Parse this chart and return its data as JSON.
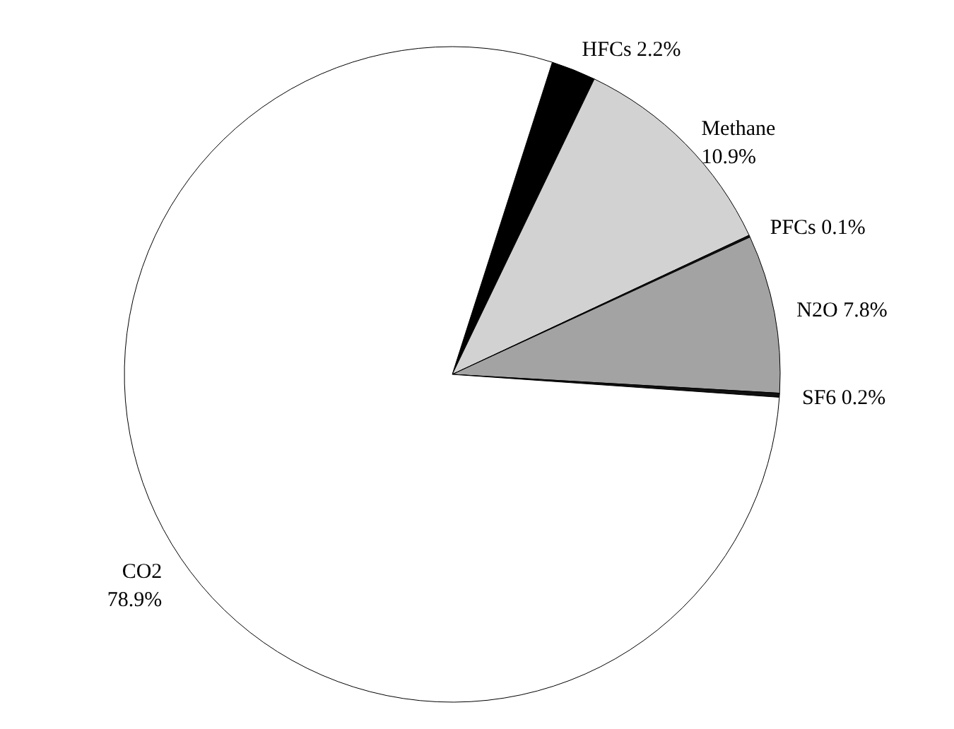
{
  "chart_data": {
    "type": "pie",
    "categories": [
      "HFCs",
      "Methane",
      "PFCs",
      "N2O",
      "SF6",
      "CO2"
    ],
    "values": [
      2.2,
      10.9,
      0.1,
      7.8,
      0.2,
      78.9
    ],
    "colors": [
      "#000000",
      "#d2d2d2",
      "#111111",
      "#a3a3a3",
      "#111111",
      "#ffffff"
    ],
    "value_labels": [
      "2.2%",
      "10.9%",
      "0.1%",
      "7.8%",
      "0.2%",
      "78.9%"
    ]
  }
}
